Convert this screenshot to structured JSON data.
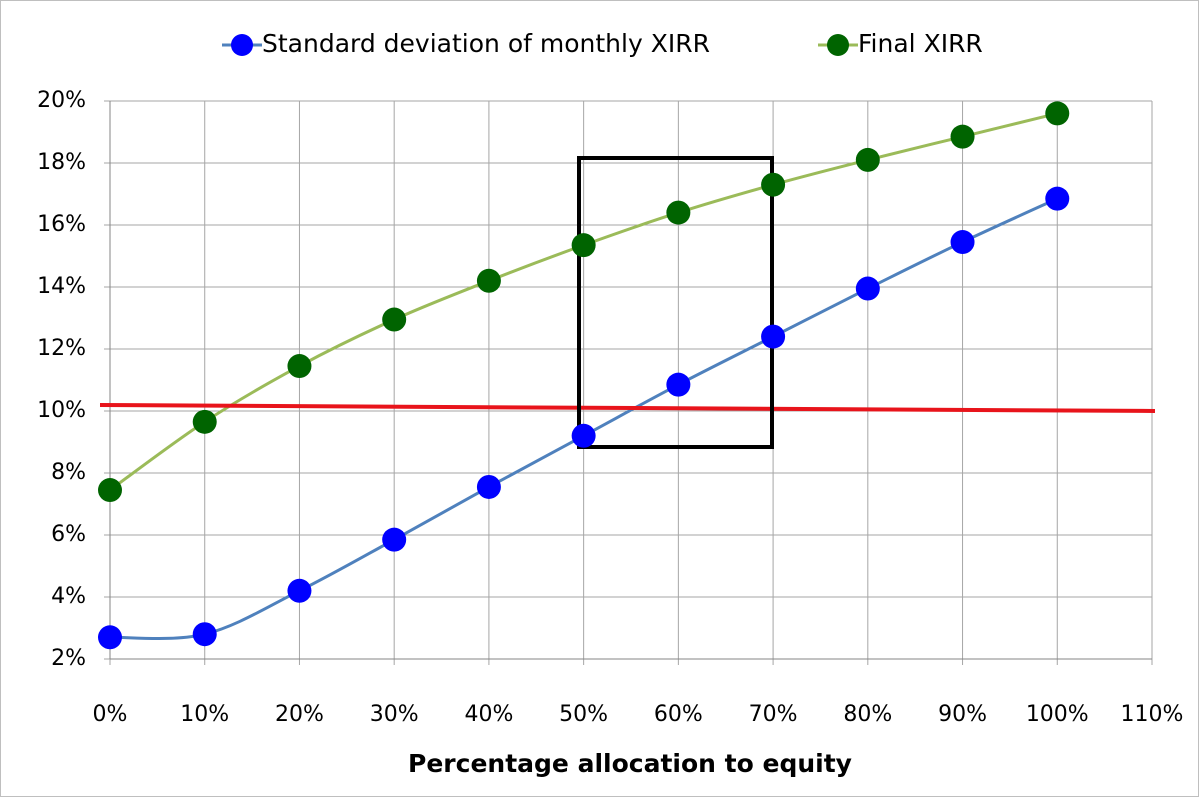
{
  "chart_data": {
    "type": "line",
    "x_label": "Percentage allocation to equity",
    "x": [
      0,
      10,
      20,
      30,
      40,
      50,
      60,
      70,
      80,
      90,
      100
    ],
    "series": [
      {
        "name": "Standard deviation of monthly XIRR",
        "color": "#0000ff",
        "line_color": "#4f81bd",
        "values": [
          2.7,
          2.8,
          4.2,
          5.85,
          7.55,
          9.2,
          10.85,
          12.4,
          13.95,
          15.45,
          16.85
        ]
      },
      {
        "name": "Final XIRR",
        "color": "#006400",
        "line_color": "#9bbb59",
        "values": [
          7.45,
          9.65,
          11.45,
          12.95,
          14.2,
          15.35,
          16.4,
          17.3,
          18.1,
          18.85,
          19.6
        ]
      }
    ],
    "xlim": [
      0,
      110
    ],
    "xticks": [
      {
        "value": 0,
        "label": "0%"
      },
      {
        "value": 10,
        "label": "10%"
      },
      {
        "value": 20,
        "label": "20%"
      },
      {
        "value": 30,
        "label": "30%"
      },
      {
        "value": 40,
        "label": "40%"
      },
      {
        "value": 50,
        "label": "50%"
      },
      {
        "value": 60,
        "label": "60%"
      },
      {
        "value": 70,
        "label": "70%"
      },
      {
        "value": 80,
        "label": "80%"
      },
      {
        "value": 90,
        "label": "90%"
      },
      {
        "value": 100,
        "label": "100%"
      },
      {
        "value": 110,
        "label": "110%"
      }
    ],
    "ylim": [
      2,
      20
    ],
    "yticks": [
      {
        "value": 2,
        "label": "2%"
      },
      {
        "value": 4,
        "label": "4%"
      },
      {
        "value": 6,
        "label": "6%"
      },
      {
        "value": 8,
        "label": "8%"
      },
      {
        "value": 10,
        "label": "10%"
      },
      {
        "value": 12,
        "label": "12%"
      },
      {
        "value": 14,
        "label": "14%"
      },
      {
        "value": 16,
        "label": "16%"
      },
      {
        "value": 18,
        "label": "18%"
      },
      {
        "value": 20,
        "label": "20%"
      }
    ],
    "grid": true,
    "legend": "top"
  }
}
